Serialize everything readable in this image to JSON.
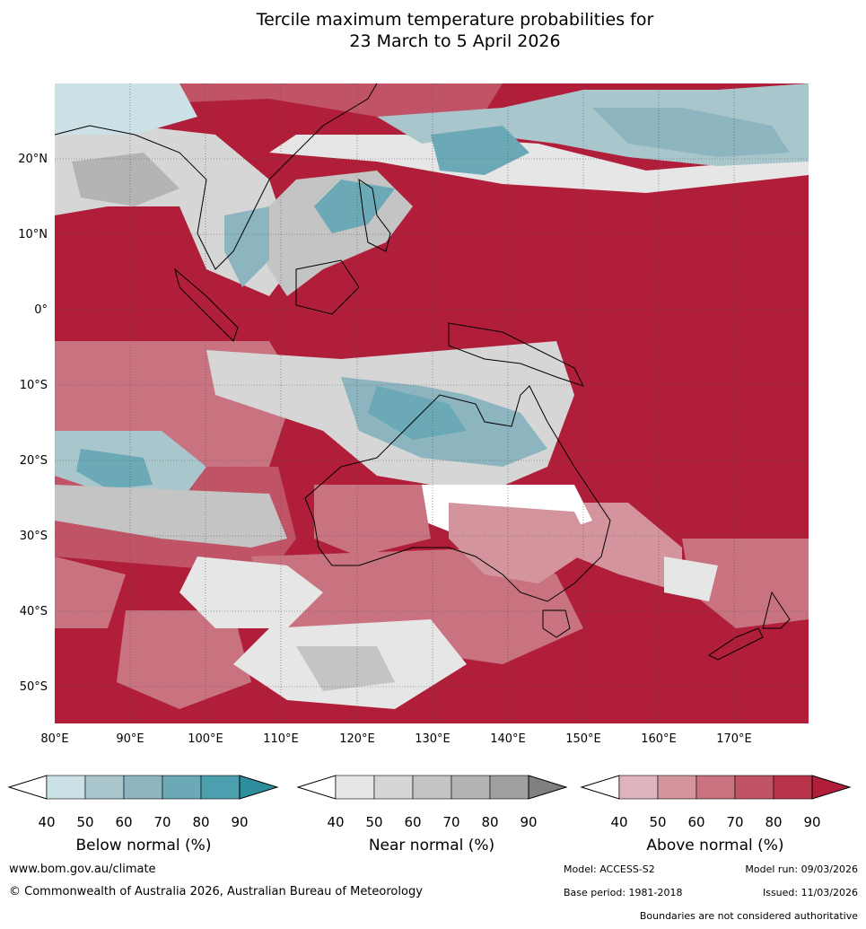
{
  "title": {
    "line1": "Tercile maximum temperature probabilities for",
    "line2": "23 March to 5 April 2026"
  },
  "map": {
    "lon_labels": [
      "80°E",
      "90°E",
      "100°E",
      "110°E",
      "120°E",
      "130°E",
      "140°E",
      "150°E",
      "160°E",
      "170°E"
    ],
    "lat_labels": [
      "20°N",
      "10°N",
      "0°",
      "10°S",
      "20°S",
      "30°S",
      "40°S",
      "50°S"
    ],
    "colors": {
      "above": [
        "#e0b4bc",
        "#d4949e",
        "#c97381",
        "#c05466",
        "#b93448",
        "#b01e3a"
      ],
      "below": [
        "#cbe1e6",
        "#a8c6cc",
        "#8db5bf",
        "#6aa9b5",
        "#4b9fae",
        "#2f8e9e"
      ],
      "near": [
        "#e6e6e6",
        "#d6d6d6",
        "#c4c4c4",
        "#b4b4b4",
        "#a0a0a0",
        "#808080"
      ]
    }
  },
  "legends": {
    "below": {
      "label": "Below normal (%)",
      "ticks": [
        "40",
        "50",
        "60",
        "70",
        "80",
        "90"
      ]
    },
    "near": {
      "label": "Near normal (%)",
      "ticks": [
        "40",
        "50",
        "60",
        "70",
        "80",
        "90"
      ]
    },
    "above": {
      "label": "Above normal (%)",
      "ticks": [
        "40",
        "50",
        "60",
        "70",
        "80",
        "90"
      ]
    }
  },
  "footer": {
    "website": "www.bom.gov.au/climate",
    "copyright": "© Commonwealth of Australia 2026, Australian Bureau of Meteorology",
    "model": "Model: ACCESS-S2",
    "model_run": "Model run: 09/03/2026",
    "base_period": "Base period: 1981-2018",
    "issued": "Issued: 11/03/2026",
    "disclaimer": "Boundaries are not considered authoritative"
  }
}
